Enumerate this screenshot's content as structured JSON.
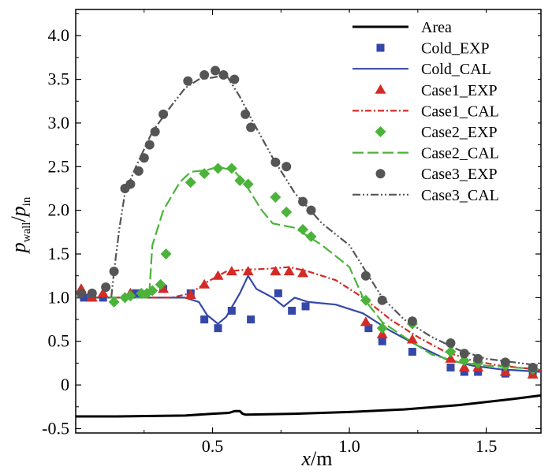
{
  "chart_data": {
    "type": "line",
    "title": "",
    "xlabel": {
      "var": "x",
      "unit": "/m"
    },
    "ylabel": {
      "var": "p",
      "num_sub": "wall",
      "den_var": "p",
      "den_sub": "in"
    },
    "xlim": [
      0.0,
      1.7
    ],
    "ylim": [
      -0.55,
      4.3
    ],
    "xticks": [
      0.5,
      1.0,
      1.5
    ],
    "xtick_labels": [
      "0.5",
      "1.0",
      "1.5"
    ],
    "yticks": [
      -0.5,
      0,
      0.5,
      1.0,
      1.5,
      2.0,
      2.5,
      3.0,
      3.5,
      4.0
    ],
    "ytick_labels": [
      "-0.5",
      "0",
      "0.5",
      "1.0",
      "1.5",
      "2.0",
      "2.5",
      "3.0",
      "3.5",
      "4.0"
    ],
    "legend_position": "top-right",
    "series": [
      {
        "name": "Area",
        "kind": "line",
        "color": "#000000",
        "dash": "solid",
        "x": [
          0.0,
          0.15,
          0.4,
          0.5,
          0.56,
          0.58,
          0.6,
          0.61,
          0.62,
          0.8,
          1.0,
          1.2,
          1.4,
          1.6,
          1.7
        ],
        "y": [
          -0.36,
          -0.36,
          -0.35,
          -0.33,
          -0.32,
          -0.3,
          -0.3,
          -0.33,
          -0.34,
          -0.33,
          -0.31,
          -0.28,
          -0.23,
          -0.16,
          -0.12
        ]
      },
      {
        "name": "Cold_EXP",
        "kind": "marker",
        "marker": "square",
        "color": "#3548a8",
        "x": [
          0.03,
          0.06,
          0.1,
          0.22,
          0.32,
          0.42,
          0.47,
          0.52,
          0.57,
          0.64,
          0.74,
          0.79,
          0.84,
          1.07,
          1.12,
          1.23,
          1.37,
          1.42,
          1.47,
          1.57,
          1.67
        ],
        "y": [
          1.0,
          1.0,
          1.0,
          1.05,
          1.1,
          1.05,
          0.75,
          0.65,
          0.85,
          0.75,
          1.05,
          0.85,
          0.9,
          0.65,
          0.5,
          0.38,
          0.2,
          0.15,
          0.15,
          0.13,
          0.12
        ]
      },
      {
        "name": "Cold_CAL",
        "kind": "line",
        "color": "#3548a8",
        "dash": "solid",
        "x": [
          0.0,
          0.2,
          0.4,
          0.45,
          0.48,
          0.52,
          0.55,
          0.6,
          0.63,
          0.66,
          0.72,
          0.76,
          0.8,
          0.85,
          0.95,
          1.05,
          1.15,
          1.25,
          1.35,
          1.45,
          1.55,
          1.65,
          1.7
        ],
        "y": [
          1.0,
          1.0,
          1.0,
          0.95,
          0.8,
          0.7,
          0.78,
          1.05,
          1.25,
          1.1,
          1.0,
          0.9,
          1.0,
          0.95,
          0.92,
          0.82,
          0.62,
          0.45,
          0.3,
          0.22,
          0.18,
          0.16,
          0.15
        ]
      },
      {
        "name": "Case1_EXP",
        "kind": "marker",
        "marker": "triangle",
        "color": "#d42b26",
        "x": [
          0.02,
          0.06,
          0.1,
          0.2,
          0.32,
          0.42,
          0.47,
          0.52,
          0.57,
          0.63,
          0.73,
          0.78,
          0.83,
          1.06,
          1.12,
          1.23,
          1.37,
          1.42,
          1.47,
          1.57,
          1.67
        ],
        "y": [
          1.1,
          1.0,
          1.05,
          1.05,
          1.1,
          1.03,
          1.15,
          1.25,
          1.3,
          1.3,
          1.3,
          1.3,
          1.28,
          0.72,
          0.58,
          0.52,
          0.3,
          0.2,
          0.2,
          0.15,
          0.12
        ]
      },
      {
        "name": "Case1_CAL",
        "kind": "line",
        "color": "#d42b26",
        "dash": "8 3 2 3",
        "x": [
          0.0,
          0.2,
          0.35,
          0.42,
          0.48,
          0.55,
          0.62,
          0.7,
          0.78,
          0.85,
          0.95,
          1.05,
          1.15,
          1.25,
          1.35,
          1.45,
          1.55,
          1.65,
          1.7
        ],
        "y": [
          1.0,
          1.0,
          1.0,
          1.05,
          1.18,
          1.3,
          1.32,
          1.33,
          1.35,
          1.3,
          1.2,
          1.0,
          0.75,
          0.55,
          0.38,
          0.28,
          0.22,
          0.19,
          0.17
        ]
      },
      {
        "name": "Case2_EXP",
        "kind": "marker",
        "marker": "diamond",
        "color": "#4bb33a",
        "x": [
          0.14,
          0.18,
          0.2,
          0.24,
          0.26,
          0.28,
          0.31,
          0.33,
          0.42,
          0.47,
          0.52,
          0.57,
          0.6,
          0.63,
          0.73,
          0.77,
          0.83,
          0.86,
          1.06,
          1.12,
          1.23,
          1.37,
          1.42,
          1.47,
          1.57,
          1.67
        ],
        "y": [
          0.95,
          1.0,
          1.02,
          1.05,
          1.05,
          1.08,
          1.15,
          1.5,
          2.32,
          2.42,
          2.48,
          2.48,
          2.34,
          2.3,
          2.15,
          1.98,
          1.78,
          1.7,
          0.97,
          0.65,
          0.7,
          0.38,
          0.28,
          0.25,
          0.22,
          0.18
        ]
      },
      {
        "name": "Case2_CAL",
        "kind": "line",
        "color": "#4bb33a",
        "dash": "14 5",
        "x": [
          0.0,
          0.26,
          0.27,
          0.28,
          0.32,
          0.38,
          0.42,
          0.48,
          0.52,
          0.58,
          0.62,
          0.68,
          0.72,
          0.8,
          0.9,
          1.0,
          1.05,
          1.12,
          1.2,
          1.3,
          1.4,
          1.5,
          1.6,
          1.7
        ],
        "y": [
          1.0,
          1.0,
          1.1,
          1.6,
          2.0,
          2.32,
          2.44,
          2.46,
          2.5,
          2.45,
          2.3,
          2.0,
          1.85,
          1.8,
          1.6,
          1.35,
          1.0,
          0.72,
          0.55,
          0.35,
          0.26,
          0.22,
          0.2,
          0.18
        ]
      },
      {
        "name": "Case3_EXP",
        "kind": "marker",
        "marker": "circle",
        "color": "#555555",
        "x": [
          0.02,
          0.06,
          0.11,
          0.14,
          0.18,
          0.2,
          0.23,
          0.25,
          0.27,
          0.29,
          0.32,
          0.41,
          0.47,
          0.51,
          0.54,
          0.58,
          0.62,
          0.64,
          0.73,
          0.77,
          0.83,
          0.86,
          1.06,
          1.12,
          1.23,
          1.37,
          1.42,
          1.47,
          1.57,
          1.67
        ],
        "y": [
          1.05,
          1.05,
          1.12,
          1.3,
          2.25,
          2.3,
          2.45,
          2.6,
          2.75,
          2.9,
          3.1,
          3.48,
          3.55,
          3.6,
          3.55,
          3.5,
          3.1,
          2.95,
          2.55,
          2.5,
          2.1,
          2.0,
          1.25,
          0.97,
          0.73,
          0.48,
          0.36,
          0.3,
          0.26,
          0.2
        ]
      },
      {
        "name": "Case3_CAL",
        "kind": "line",
        "color": "#555555",
        "dash": "10 3 2 3 2 3",
        "x": [
          0.0,
          0.13,
          0.14,
          0.16,
          0.18,
          0.22,
          0.28,
          0.35,
          0.4,
          0.45,
          0.5,
          0.55,
          0.6,
          0.65,
          0.72,
          0.8,
          0.9,
          1.0,
          1.05,
          1.12,
          1.2,
          1.3,
          1.4,
          1.5,
          1.6,
          1.7
        ],
        "y": [
          1.0,
          1.0,
          1.3,
          1.8,
          2.2,
          2.5,
          2.9,
          3.2,
          3.4,
          3.5,
          3.52,
          3.55,
          3.3,
          3.0,
          2.6,
          2.2,
          1.85,
          1.6,
          1.35,
          1.0,
          0.75,
          0.55,
          0.4,
          0.3,
          0.26,
          0.22
        ]
      }
    ]
  }
}
